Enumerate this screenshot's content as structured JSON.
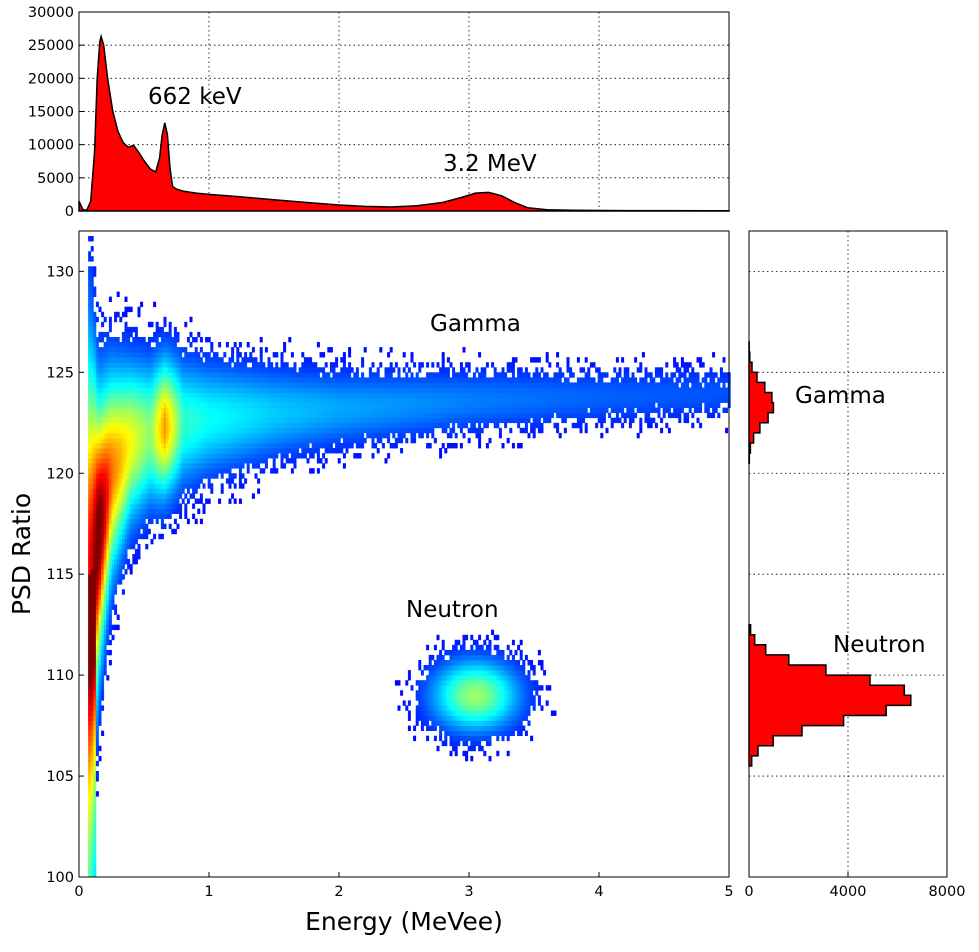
{
  "chart_data": [
    {
      "id": "energy_histogram",
      "type": "area",
      "x": [
        0,
        0.03,
        0.06,
        0.09,
        0.12,
        0.14,
        0.16,
        0.17,
        0.19,
        0.22,
        0.26,
        0.3,
        0.34,
        0.38,
        0.42,
        0.46,
        0.5,
        0.55,
        0.59,
        0.62,
        0.64,
        0.66,
        0.68,
        0.7,
        0.72,
        0.75,
        0.8,
        0.9,
        1.0,
        1.2,
        1.5,
        1.8,
        2.0,
        2.2,
        2.4,
        2.6,
        2.8,
        2.95,
        3.05,
        3.15,
        3.25,
        3.35,
        3.45,
        3.6,
        3.8,
        4.2,
        5.0
      ],
      "y": [
        1500,
        200,
        100,
        1500,
        9000,
        20000,
        25500,
        26300,
        25000,
        20000,
        15000,
        12000,
        10300,
        9600,
        9900,
        8800,
        7600,
        6300,
        5900,
        8000,
        11500,
        13300,
        11500,
        6500,
        3700,
        3300,
        3000,
        2700,
        2500,
        2200,
        1700,
        1200,
        900,
        700,
        600,
        800,
        1300,
        2100,
        2700,
        2800,
        2300,
        1300,
        500,
        200,
        100,
        60,
        40
      ],
      "ylim": [
        0,
        30000
      ],
      "xlim": [
        0,
        5
      ],
      "yticks": [
        "0",
        "5000",
        "10000",
        "15000",
        "20000",
        "25000",
        "30000"
      ],
      "fill_color": "#ff0000",
      "grid": true,
      "annotations": [
        {
          "text": "662 keV",
          "x": 0.53,
          "y": 16000
        },
        {
          "text": "3.2 MeV",
          "x": 2.78,
          "y": 6300
        }
      ]
    },
    {
      "id": "psd_vs_energy",
      "type": "heatmap",
      "xlabel": "Energy (MeVee)",
      "ylabel": "PSD Ratio",
      "xlim": [
        0,
        5
      ],
      "ylim": [
        100,
        132
      ],
      "xticks": [
        "0",
        "1",
        "2",
        "3",
        "4",
        "5"
      ],
      "yticks": [
        "100",
        "105",
        "110",
        "115",
        "120",
        "125",
        "130"
      ],
      "colormap": "jet",
      "grid": false,
      "gamma_band": [
        {
          "energy": 0.09,
          "psd_center": 115.0,
          "psd_spread": 6.0,
          "density": 0.75
        },
        {
          "energy": 0.15,
          "psd_center": 117.0,
          "psd_spread": 3.6,
          "density": 1.0
        },
        {
          "energy": 0.25,
          "psd_center": 120.0,
          "psd_spread": 2.8,
          "density": 0.6
        },
        {
          "energy": 0.4,
          "psd_center": 121.5,
          "psd_spread": 2.2,
          "density": 0.42
        },
        {
          "energy": 0.55,
          "psd_center": 122.0,
          "psd_spread": 2.0,
          "density": 0.3
        },
        {
          "energy": 0.66,
          "psd_center": 122.3,
          "psd_spread": 1.9,
          "density": 0.55
        },
        {
          "energy": 0.8,
          "psd_center": 122.5,
          "psd_spread": 1.8,
          "density": 0.22
        },
        {
          "energy": 1.0,
          "psd_center": 122.7,
          "psd_spread": 1.6,
          "density": 0.18
        },
        {
          "energy": 1.5,
          "psd_center": 123.0,
          "psd_spread": 1.3,
          "density": 0.13
        },
        {
          "energy": 2.0,
          "psd_center": 123.2,
          "psd_spread": 1.1,
          "density": 0.1
        },
        {
          "energy": 3.0,
          "psd_center": 123.6,
          "psd_spread": 0.95,
          "density": 0.07
        },
        {
          "energy": 4.0,
          "psd_center": 123.8,
          "psd_spread": 0.85,
          "density": 0.05
        },
        {
          "energy": 5.0,
          "psd_center": 124.0,
          "psd_spread": 0.8,
          "density": 0.04
        }
      ],
      "neutron_cluster": {
        "energy_center": 3.05,
        "energy_spread": 0.2,
        "psd_center": 109.0,
        "psd_spread": 1.05,
        "density": 0.32
      },
      "annotations": [
        {
          "text": "Gamma",
          "x": 2.7,
          "y": 126.6
        },
        {
          "text": "Neutron",
          "x": 2.5,
          "y": 112.9
        }
      ]
    },
    {
      "id": "psd_histogram",
      "type": "bar",
      "orientation": "horizontal",
      "bin_width": 0.5,
      "psd_bins": [
        120.75,
        121.25,
        121.75,
        122.25,
        122.75,
        123.25,
        123.75,
        124.25,
        124.75,
        125.25,
        125.75,
        126.25,
        105.75,
        106.25,
        106.75,
        107.25,
        107.75,
        108.25,
        108.75,
        109.25,
        109.75,
        110.25,
        110.75,
        111.25,
        111.75,
        112.25
      ],
      "counts": [
        13,
        58,
        186,
        442,
        771,
        986,
        927,
        640,
        325,
        121,
        33,
        7,
        110,
        363,
        977,
        2143,
        3823,
        5543,
        6539,
        6274,
        4889,
        3108,
        1607,
        675,
        229,
        64
      ],
      "xlim": [
        0,
        8000
      ],
      "xticks": [
        "0",
        "4000",
        "8000"
      ],
      "fill_color": "#ff0000",
      "grid": true,
      "annotations": [
        {
          "text": "Gamma",
          "x": 2300,
          "y": 123.4
        },
        {
          "text": "Neutron",
          "x": 3400,
          "y": 111.3
        }
      ]
    }
  ]
}
